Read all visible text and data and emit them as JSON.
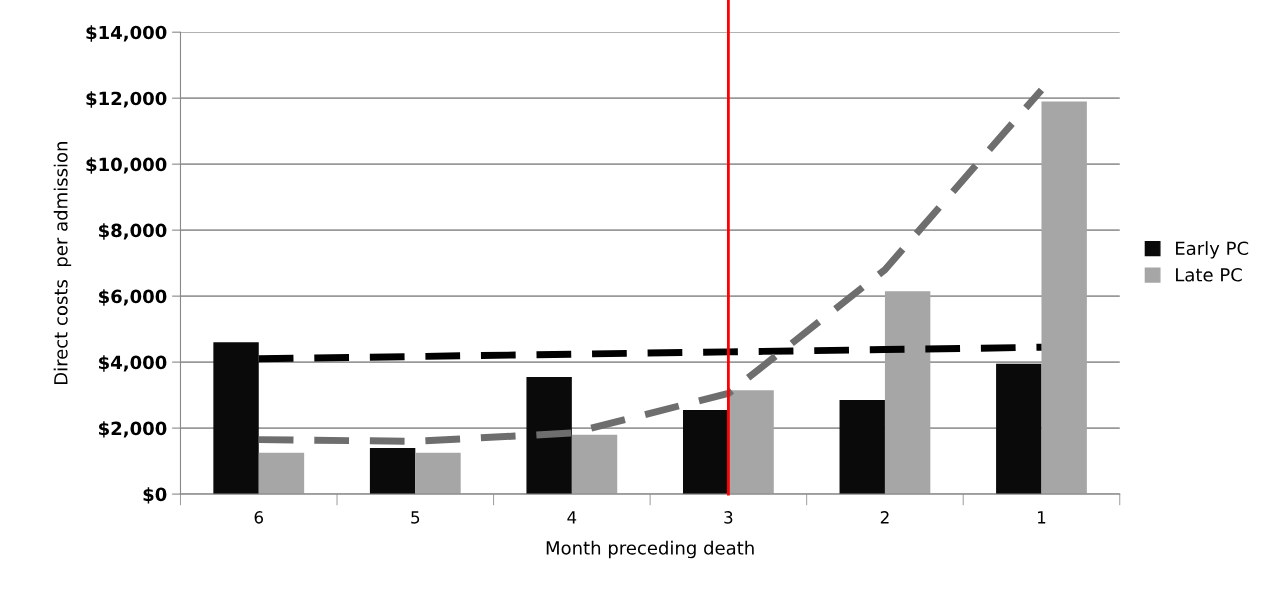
{
  "chart_data": {
    "type": "bar",
    "xlabel": "Month preceding death",
    "ylabel": "Direct costs  per admission",
    "categories": [
      "6",
      "5",
      "4",
      "3",
      "2",
      "1"
    ],
    "series": [
      {
        "name": "Early PC",
        "color": "#0a0a0a",
        "values": [
          4600,
          1400,
          3550,
          2550,
          2850,
          3950
        ]
      },
      {
        "name": "Late PC",
        "color": "#a6a6a6",
        "values": [
          1250,
          1250,
          1800,
          3150,
          6150,
          11900
        ]
      },
      {
        "type": "line",
        "line_style": "dashed",
        "color": "#000000",
        "values": [
          4100,
          4170,
          4240,
          4310,
          4380,
          4450
        ]
      },
      {
        "type": "line",
        "line_style": "dashed",
        "color": "#6e6e6e",
        "values": [
          1650,
          1600,
          1850,
          3050,
          6800,
          12250
        ]
      }
    ],
    "ylim": [
      0,
      14000
    ],
    "yticks": [
      {
        "value": 0,
        "label": "$0"
      },
      {
        "value": 2000,
        "label": "$2,000"
      },
      {
        "value": 4000,
        "label": "$4,000"
      },
      {
        "value": 6000,
        "label": "$6,000"
      },
      {
        "value": 8000,
        "label": "$8,000"
      },
      {
        "value": 10000,
        "label": "$10,000"
      },
      {
        "value": 12000,
        "label": "$12,000"
      },
      {
        "value": 14000,
        "label": "$14,000"
      }
    ],
    "ref_lines": [
      {
        "axis": "x",
        "value": "3",
        "color": "#ff0000"
      }
    ],
    "grid": "y",
    "legend": "right"
  }
}
